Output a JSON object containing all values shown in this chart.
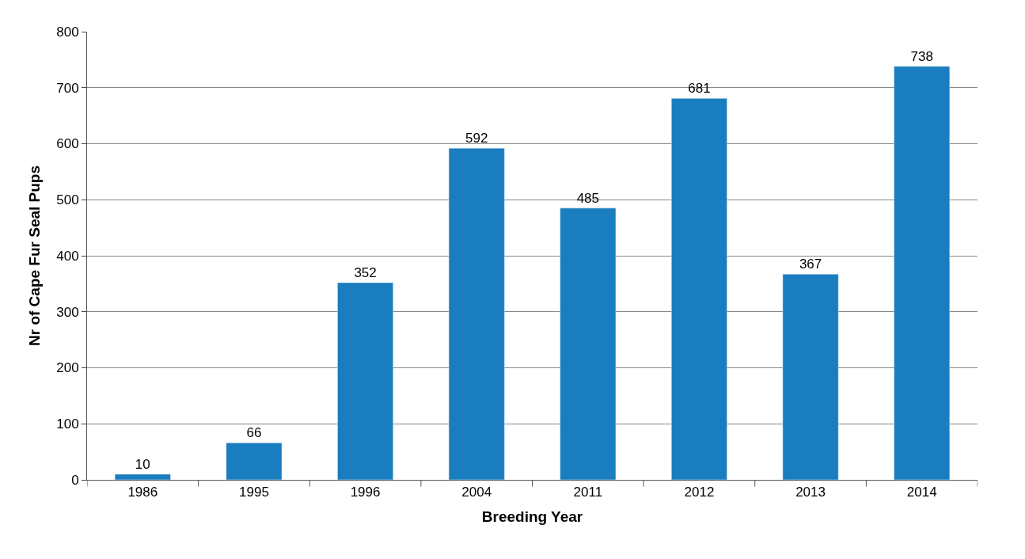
{
  "chart_data": {
    "type": "bar",
    "xlabel": "Breeding Year",
    "ylabel": "Nr of Cape Fur Seal Pups",
    "categories": [
      "1986",
      "1995",
      "1996",
      "2004",
      "2011",
      "2012",
      "2013",
      "2014"
    ],
    "values": [
      10,
      66,
      352,
      592,
      485,
      681,
      367,
      738
    ],
    "color": "#1a7dc0",
    "ylim": [
      0,
      800
    ],
    "yticks": [
      0,
      100,
      200,
      300,
      400,
      500,
      600,
      700,
      800
    ],
    "grid": "y",
    "data_labels": true
  }
}
